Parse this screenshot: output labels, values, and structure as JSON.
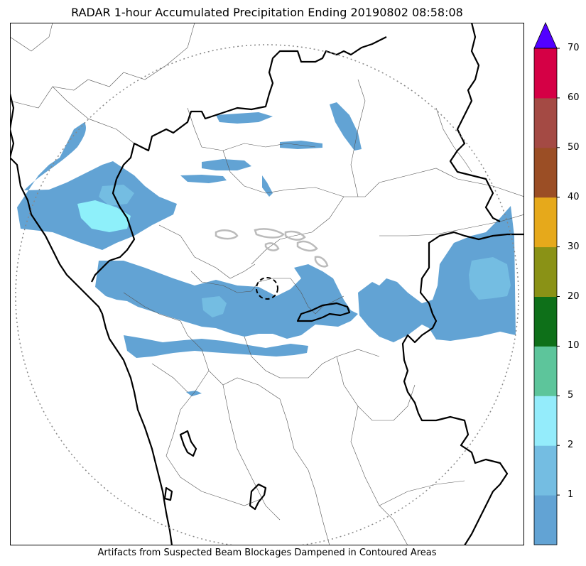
{
  "title": "RADAR 1-hour Accumulated Precipitation Ending 20190802 08:58:08",
  "footer": "Artifacts from Suspected Beam Blockages Dampened in Contoured Areas",
  "colorbar": {
    "ticks": [
      "1",
      "2",
      "5",
      "10",
      "20",
      "30",
      "40",
      "50",
      "60",
      "70"
    ],
    "colors": [
      "#62a3d4",
      "#74bde2",
      "#94ecfb",
      "#5dc59b",
      "#0e7019",
      "#8a9216",
      "#e6a91b",
      "#9b4e25",
      "#a44a44",
      "#d50045"
    ],
    "extend_max_color": "#5200ff"
  },
  "map": {
    "range_ring_color": "#888888",
    "precip_light": "#62a3d4",
    "precip_medium": "#74bde2",
    "precip_heavy": "#8ef0fa"
  }
}
